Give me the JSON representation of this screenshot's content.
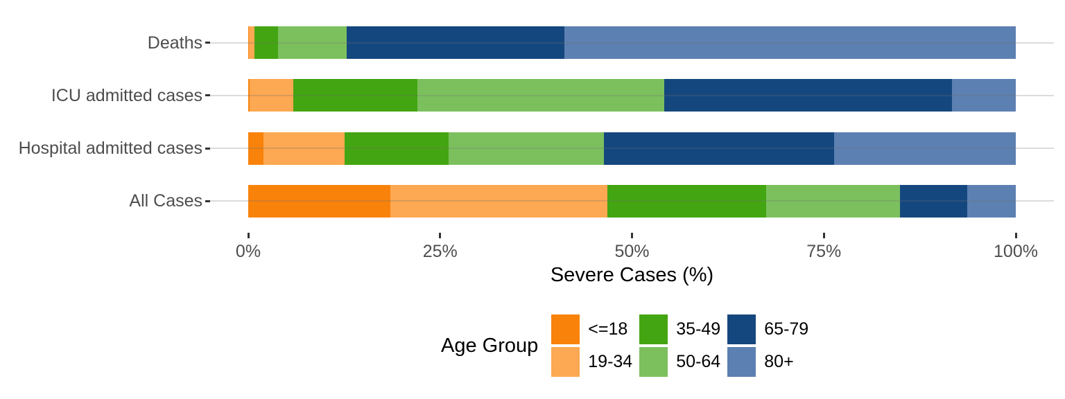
{
  "chart_data": {
    "type": "bar",
    "orientation": "horizontal",
    "stacked": true,
    "unit": "percent",
    "title": "",
    "xlabel": "Severe Cases (%)",
    "ylabel": "",
    "xlim": [
      0,
      100
    ],
    "grid": "horizontal-major-only",
    "background_color": "#FFFFFF",
    "axis_text_color": "#4D4D4D",
    "tick_color": "#333333",
    "x_ticks": [
      {
        "value": 0,
        "label": "0%"
      },
      {
        "value": 25,
        "label": "25%"
      },
      {
        "value": 50,
        "label": "50%"
      },
      {
        "value": 75,
        "label": "75%"
      },
      {
        "value": 100,
        "label": "100%"
      }
    ],
    "categories": [
      "Deaths",
      "ICU admitted cases",
      "Hospital admitted cases",
      "All Cases"
    ],
    "series": [
      {
        "name": "<=18",
        "color": "#F9820B",
        "values": [
          0.1,
          0.2,
          2.0,
          18.5
        ]
      },
      {
        "name": "19-34",
        "color": "#FDA852",
        "values": [
          0.7,
          5.7,
          10.6,
          28.3
        ]
      },
      {
        "name": "35-49",
        "color": "#43A511",
        "values": [
          3.1,
          16.1,
          13.5,
          20.7
        ]
      },
      {
        "name": "50-64",
        "color": "#7CC05E",
        "values": [
          8.9,
          32.2,
          20.2,
          17.4
        ]
      },
      {
        "name": "65-79",
        "color": "#15477F",
        "values": [
          28.4,
          37.5,
          30.0,
          8.8
        ]
      },
      {
        "name": "80+",
        "color": "#5C80B1",
        "values": [
          58.8,
          8.3,
          23.7,
          6.3
        ]
      }
    ],
    "legend": {
      "title": "Age Group",
      "position": "bottom",
      "rows": 2,
      "fill_order": "by-column"
    }
  }
}
